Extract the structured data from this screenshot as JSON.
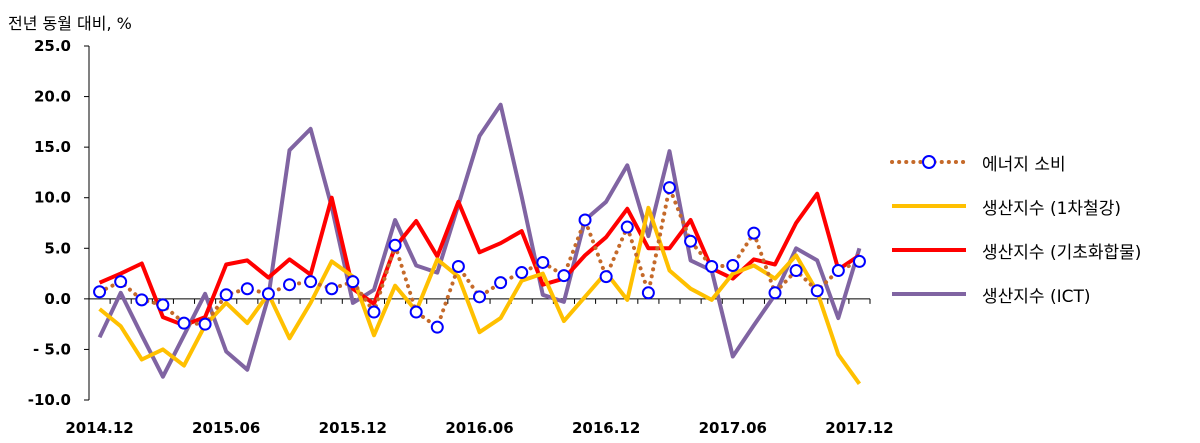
{
  "unit_label": "전년 동월 대비, %",
  "chart_data": {
    "type": "line",
    "ylim": [
      -10,
      25
    ],
    "y_ticks": [
      "25.0",
      "20.0",
      "15.0",
      "10.0",
      "5.0",
      "0.0",
      "- 5.0",
      "-10.0"
    ],
    "y_tick_values": [
      25,
      20,
      15,
      10,
      5,
      0,
      -5,
      -10
    ],
    "x_tick_labels": [
      "2014.12",
      "2015.06",
      "2015.12",
      "2016.06",
      "2016.12",
      "2017.06",
      "2017.12"
    ],
    "x_tick_indices": [
      0,
      6,
      12,
      18,
      24,
      30,
      36
    ],
    "grid": false,
    "legend_position": "right",
    "series": [
      {
        "name": "에너지 소비",
        "style": "dotted-markers",
        "color": "#C56A2A",
        "marker_color": "#0000FF",
        "values": [
          0.7,
          1.7,
          -0.1,
          -0.6,
          -2.4,
          -2.5,
          0.4,
          1.0,
          0.5,
          1.4,
          1.7,
          1.0,
          1.7,
          -1.3,
          5.3,
          -1.3,
          -2.8,
          3.2,
          0.2,
          1.6,
          2.6,
          3.6,
          2.3,
          7.8,
          2.2,
          7.1,
          0.6,
          11.0,
          5.7,
          3.2,
          3.3,
          6.5,
          0.6,
          2.8,
          0.8,
          2.8,
          3.7
        ]
      },
      {
        "name": "생산지수 (1차철강)",
        "style": "solid",
        "color": "#FFC000",
        "values": [
          -1.0,
          -2.7,
          -6.0,
          -5.0,
          -6.6,
          -2.6,
          -0.4,
          -2.4,
          0.5,
          -3.9,
          -0.4,
          3.7,
          2.2,
          -3.6,
          1.3,
          -1.2,
          3.9,
          2.2,
          -3.3,
          -1.9,
          1.8,
          2.5,
          -2.2,
          0.2,
          2.6,
          -0.1,
          9.0,
          2.8,
          1.0,
          -0.1,
          2.5,
          3.3,
          2.0,
          4.3,
          0.7,
          -5.5,
          -8.4
        ]
      },
      {
        "name": "생산지수 (기초화합물)",
        "style": "solid",
        "color": "#FF0000",
        "values": [
          1.6,
          2.5,
          3.5,
          -1.8,
          -2.6,
          -1.8,
          3.4,
          3.8,
          2.1,
          3.9,
          2.4,
          10.0,
          1.0,
          -0.5,
          5.1,
          7.7,
          4.2,
          9.6,
          4.6,
          5.5,
          6.7,
          1.4,
          2.0,
          4.3,
          6.1,
          8.9,
          5.0,
          5.0,
          7.8,
          3.0,
          2.0,
          3.9,
          3.4,
          7.5,
          10.4,
          2.9,
          4.3
        ]
      },
      {
        "name": "생산지수 (ICT)",
        "style": "solid",
        "color": "#8064A2",
        "values": [
          -3.8,
          0.6,
          -3.6,
          -7.7,
          -3.6,
          0.5,
          -5.2,
          -7.0,
          0.2,
          14.7,
          16.8,
          9.1,
          -0.4,
          0.9,
          7.8,
          3.3,
          2.6,
          9.3,
          16.1,
          19.2,
          10.1,
          0.4,
          -0.3,
          7.8,
          9.6,
          13.2,
          6.2,
          14.6,
          3.8,
          2.8,
          -5.7,
          -2.6,
          0.4,
          5.0,
          3.8,
          -1.9,
          5.0
        ]
      }
    ]
  }
}
